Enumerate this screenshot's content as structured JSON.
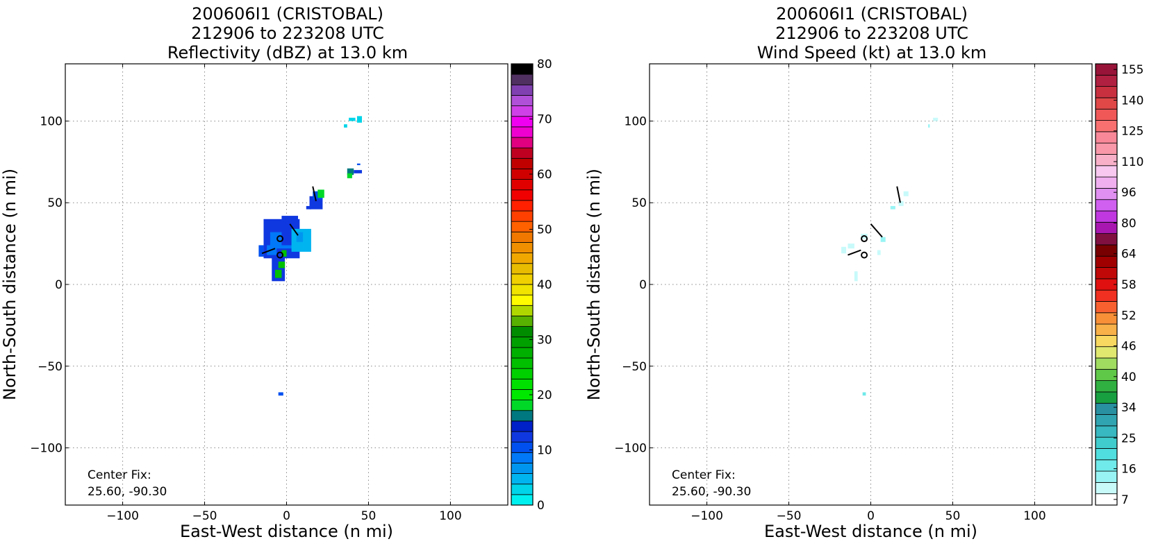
{
  "chart_data": [
    {
      "type": "heatmap",
      "title_lines": [
        "200606I1 (CRISTOBAL)",
        "212906 to 223208 UTC",
        "Reflectivity (dBZ) at 13.0 km"
      ],
      "xlabel": "East-West distance (n mi)",
      "ylabel": "North-South distance (n mi)",
      "xlim": [
        -135,
        135
      ],
      "ylim": [
        -135,
        135
      ],
      "xticks": [
        -100,
        -50,
        0,
        50,
        100
      ],
      "yticks": [
        -100,
        -50,
        0,
        50,
        100
      ],
      "xtick_labels": [
        "−100",
        "−50",
        "0",
        "50",
        "100"
      ],
      "ytick_labels": [
        "−100",
        "−50",
        "0",
        "50",
        "100"
      ],
      "grid": true,
      "annotation": [
        "Center Fix:",
        "25.60, -90.30"
      ],
      "colorbar": {
        "labels": [
          "0",
          "10",
          "20",
          "30",
          "40",
          "50",
          "60",
          "70",
          "80"
        ],
        "colors": [
          "#00f0f0",
          "#00d4e8",
          "#00b4f0",
          "#0096f0",
          "#0078f8",
          "#0050f0",
          "#1038e0",
          "#0020c8",
          "#007880",
          "#00d828",
          "#00e800",
          "#00e000",
          "#00d000",
          "#00c000",
          "#00b000",
          "#00a000",
          "#008c00",
          "#58b000",
          "#b0d800",
          "#fffc00",
          "#f0e400",
          "#f0d000",
          "#e8bc00",
          "#f0a800",
          "#f09000",
          "#f07800",
          "#ff6000",
          "#ff4000",
          "#ff2000",
          "#f00000",
          "#e00000",
          "#d00000",
          "#c00000",
          "#c00020",
          "#e00080",
          "#f000d0",
          "#f000f0",
          "#d040e8",
          "#b050d8",
          "#8040b0",
          "#503060",
          "#000000"
        ]
      },
      "echo_cells": [
        {
          "x": -14,
          "y": 16,
          "w": 22,
          "h": 24,
          "color": "#1038e0"
        },
        {
          "x": -10,
          "y": 22,
          "w": 14,
          "h": 10,
          "color": "#0078f8"
        },
        {
          "x": -3,
          "y": 24,
          "w": 10,
          "h": 18,
          "color": "#1038e0"
        },
        {
          "x": 3,
          "y": 20,
          "w": 12,
          "h": 14,
          "color": "#00b4f0"
        },
        {
          "x": 6,
          "y": 26,
          "w": 4,
          "h": 6,
          "color": "#0096f0"
        },
        {
          "x": -12,
          "y": 18,
          "w": 6,
          "h": 6,
          "color": "#0078f8"
        },
        {
          "x": -9,
          "y": 2,
          "w": 8,
          "h": 16,
          "color": "#1038e0"
        },
        {
          "x": -7,
          "y": 4,
          "w": 4,
          "h": 5,
          "color": "#00c000"
        },
        {
          "x": -5,
          "y": 10,
          "w": 4,
          "h": 4,
          "color": "#00c000"
        },
        {
          "x": -3,
          "y": 17,
          "w": 3,
          "h": 4,
          "color": "#00c000"
        },
        {
          "x": -17,
          "y": 17,
          "w": 3,
          "h": 7,
          "color": "#0050f0"
        },
        {
          "x": 14,
          "y": 46,
          "w": 8,
          "h": 8,
          "color": "#1038e0"
        },
        {
          "x": 16,
          "y": 52,
          "w": 6,
          "h": 5,
          "color": "#0050f0"
        },
        {
          "x": 19,
          "y": 53,
          "w": 4,
          "h": 5,
          "color": "#00d828"
        },
        {
          "x": 12,
          "y": 46,
          "w": 3,
          "h": 2,
          "color": "#1038e0"
        },
        {
          "x": 37,
          "y": 67,
          "w": 4,
          "h": 4,
          "color": "#007880"
        },
        {
          "x": 37,
          "y": 65,
          "w": 3,
          "h": 3,
          "color": "#00d828"
        },
        {
          "x": 41,
          "y": 68,
          "w": 5,
          "h": 2,
          "color": "#1038e0"
        },
        {
          "x": 43,
          "y": 73,
          "w": 2,
          "h": 1,
          "color": "#0050f0"
        },
        {
          "x": 38,
          "y": 100,
          "w": 4,
          "h": 2,
          "color": "#00d4e8"
        },
        {
          "x": 43,
          "y": 99,
          "w": 3,
          "h": 4,
          "color": "#00d4e8"
        },
        {
          "x": 35,
          "y": 96,
          "w": 2,
          "h": 2,
          "color": "#00d4e8"
        },
        {
          "x": -5,
          "y": -68,
          "w": 3,
          "h": 2,
          "color": "#0050f0"
        }
      ],
      "center_marks": [
        {
          "x": -4,
          "y": 28
        },
        {
          "x": -4,
          "y": 18
        }
      ],
      "barbs": [
        {
          "x1": 2,
          "y1": 37,
          "x2": 7,
          "y2": 30
        },
        {
          "x1": -15,
          "y1": 19,
          "x2": -7,
          "y2": 22
        },
        {
          "x1": 16,
          "y1": 60,
          "x2": 18,
          "y2": 51
        }
      ]
    },
    {
      "type": "heatmap",
      "title_lines": [
        "200606I1 (CRISTOBAL)",
        "212906 to 223208 UTC",
        "Wind Speed (kt) at 13.0 km"
      ],
      "xlabel": "East-West distance (n mi)",
      "ylabel": "North-South distance (n mi)",
      "xlim": [
        -135,
        135
      ],
      "ylim": [
        -135,
        135
      ],
      "xticks": [
        -100,
        -50,
        0,
        50,
        100
      ],
      "yticks": [
        -100,
        -50,
        0,
        50,
        100
      ],
      "xtick_labels": [
        "−100",
        "−50",
        "0",
        "50",
        "100"
      ],
      "ytick_labels": [
        "−100",
        "−50",
        "0",
        "50",
        "100"
      ],
      "grid": true,
      "annotation": [
        "Center Fix:",
        "25.60, -90.30"
      ],
      "colorbar": {
        "labels": [
          "7",
          "16",
          "25",
          "34",
          "40",
          "46",
          "52",
          "58",
          "64",
          "80",
          "96",
          "110",
          "125",
          "140",
          "155"
        ],
        "colors": [
          "#ffffff",
          "#c8fafa",
          "#98f4f4",
          "#70eaea",
          "#50dede",
          "#40cccc",
          "#38b8c0",
          "#30a4b0",
          "#2890a0",
          "#18a040",
          "#30b040",
          "#60c848",
          "#a0dc60",
          "#e0e870",
          "#f8d860",
          "#f8b048",
          "#f89038",
          "#f86030",
          "#f03020",
          "#e01010",
          "#c00808",
          "#a00000",
          "#780000",
          "#801040",
          "#a818b0",
          "#c038e0",
          "#d060f0",
          "#e090f0",
          "#f0b0f0",
          "#f8c8f0",
          "#f8b0c8",
          "#f898a8",
          "#f88898",
          "#f87070",
          "#f05858",
          "#e04848",
          "#c83040",
          "#b02040",
          "#981438"
        ]
      },
      "echo_cells": [
        {
          "x": -18,
          "y": 19,
          "w": 3,
          "h": 4,
          "color": "#c8fafa"
        },
        {
          "x": -14,
          "y": 22,
          "w": 4,
          "h": 3,
          "color": "#c8fafa"
        },
        {
          "x": -6,
          "y": 28,
          "w": 4,
          "h": 3,
          "color": "#c8fafa"
        },
        {
          "x": 6,
          "y": 26,
          "w": 3,
          "h": 3,
          "color": "#98f4f4"
        },
        {
          "x": 4,
          "y": 18,
          "w": 2,
          "h": 3,
          "color": "#c8fafa"
        },
        {
          "x": -10,
          "y": 2,
          "w": 2,
          "h": 6,
          "color": "#c8fafa"
        },
        {
          "x": 12,
          "y": 46,
          "w": 3,
          "h": 2,
          "color": "#98f4f4"
        },
        {
          "x": 17,
          "y": 48,
          "w": 3,
          "h": 3,
          "color": "#c8fafa"
        },
        {
          "x": 20,
          "y": 54,
          "w": 3,
          "h": 3,
          "color": "#c8fafa"
        },
        {
          "x": 38,
          "y": 100,
          "w": 3,
          "h": 2,
          "color": "#c8fafa"
        },
        {
          "x": 35,
          "y": 96,
          "w": 1,
          "h": 2,
          "color": "#98f4f4"
        },
        {
          "x": -5,
          "y": -68,
          "w": 2,
          "h": 2,
          "color": "#70eaea"
        }
      ],
      "center_marks": [
        {
          "x": -4,
          "y": 28
        },
        {
          "x": -4,
          "y": 18
        }
      ],
      "barbs": [
        {
          "x1": 0,
          "y1": 37,
          "x2": 7,
          "y2": 29
        },
        {
          "x1": -14,
          "y1": 18,
          "x2": -6,
          "y2": 21
        },
        {
          "x1": 16,
          "y1": 60,
          "x2": 18,
          "y2": 50
        }
      ]
    }
  ]
}
